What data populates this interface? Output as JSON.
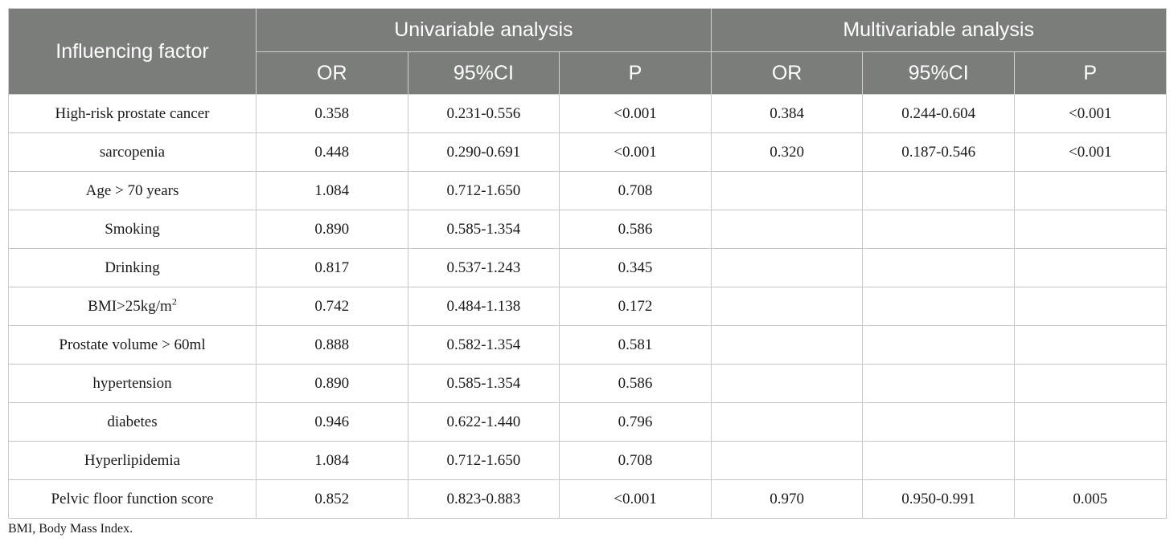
{
  "header": {
    "factor_label": "Influencing factor",
    "univariable_label": "Univariable analysis",
    "multivariable_label": "Multivariable analysis",
    "sub_columns": [
      "OR",
      "95%CI",
      "P",
      "OR",
      "95%CI",
      "P"
    ]
  },
  "rows": [
    {
      "factor": "High-risk prostate cancer",
      "factor_sup": "",
      "uni_or": "0.358",
      "uni_ci": "0.231-0.556",
      "uni_p": "<0.001",
      "multi_or": "0.384",
      "multi_ci": "0.244-0.604",
      "multi_p": "<0.001"
    },
    {
      "factor": "sarcopenia",
      "factor_sup": "",
      "uni_or": "0.448",
      "uni_ci": "0.290-0.691",
      "uni_p": "<0.001",
      "multi_or": "0.320",
      "multi_ci": "0.187-0.546",
      "multi_p": "<0.001"
    },
    {
      "factor": "Age > 70 years",
      "factor_sup": "",
      "uni_or": "1.084",
      "uni_ci": "0.712-1.650",
      "uni_p": "0.708",
      "multi_or": "",
      "multi_ci": "",
      "multi_p": ""
    },
    {
      "factor": "Smoking",
      "factor_sup": "",
      "uni_or": "0.890",
      "uni_ci": "0.585-1.354",
      "uni_p": "0.586",
      "multi_or": "",
      "multi_ci": "",
      "multi_p": ""
    },
    {
      "factor": "Drinking",
      "factor_sup": "",
      "uni_or": "0.817",
      "uni_ci": "0.537-1.243",
      "uni_p": "0.345",
      "multi_or": "",
      "multi_ci": "",
      "multi_p": ""
    },
    {
      "factor": "BMI>25kg/m",
      "factor_sup": "2",
      "uni_or": "0.742",
      "uni_ci": "0.484-1.138",
      "uni_p": "0.172",
      "multi_or": "",
      "multi_ci": "",
      "multi_p": ""
    },
    {
      "factor": "Prostate volume > 60ml",
      "factor_sup": "",
      "uni_or": "0.888",
      "uni_ci": "0.582-1.354",
      "uni_p": "0.581",
      "multi_or": "",
      "multi_ci": "",
      "multi_p": ""
    },
    {
      "factor": "hypertension",
      "factor_sup": "",
      "uni_or": "0.890",
      "uni_ci": "0.585-1.354",
      "uni_p": "0.586",
      "multi_or": "",
      "multi_ci": "",
      "multi_p": ""
    },
    {
      "factor": "diabetes",
      "factor_sup": "",
      "uni_or": "0.946",
      "uni_ci": "0.622-1.440",
      "uni_p": "0.796",
      "multi_or": "",
      "multi_ci": "",
      "multi_p": ""
    },
    {
      "factor": "Hyperlipidemia",
      "factor_sup": "",
      "uni_or": "1.084",
      "uni_ci": "0.712-1.650",
      "uni_p": "0.708",
      "multi_or": "",
      "multi_ci": "",
      "multi_p": ""
    },
    {
      "factor": "Pelvic floor function score",
      "factor_sup": "",
      "uni_or": "0.852",
      "uni_ci": "0.823-0.883",
      "uni_p": "<0.001",
      "multi_or": "0.970",
      "multi_ci": "0.950-0.991",
      "multi_p": "0.005"
    }
  ],
  "footnote": "BMI, Body Mass Index.",
  "colors": {
    "header_bg": "#7b7d7b",
    "header_text": "#ffffff",
    "border": "#c8c8c8"
  }
}
